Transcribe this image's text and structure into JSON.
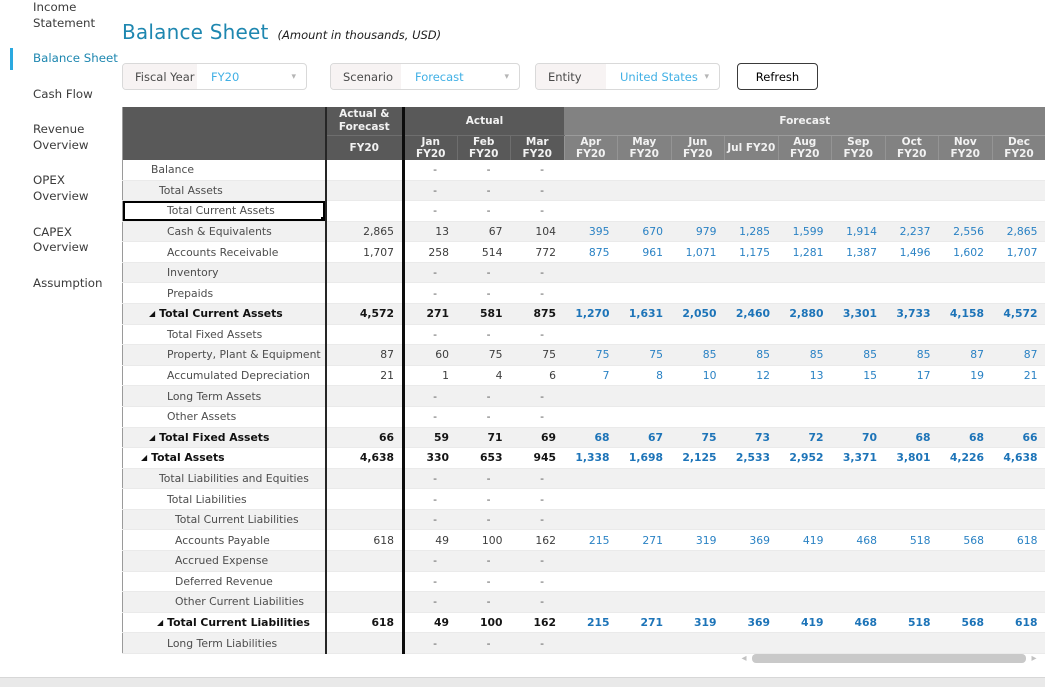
{
  "header": {
    "title": "Balance Sheet",
    "subtitle": "(Amount in thousands, USD)"
  },
  "sidebar": {
    "items": [
      {
        "label": "Income Statement",
        "active": false
      },
      {
        "label": "Balance Sheet",
        "active": true
      },
      {
        "label": "Cash Flow",
        "active": false
      },
      {
        "label": "Revenue Overview",
        "active": false
      },
      {
        "label": "OPEX Overview",
        "active": false
      },
      {
        "label": "CAPEX Overview",
        "active": false
      },
      {
        "label": "Assumption",
        "active": false
      }
    ]
  },
  "filters": [
    {
      "label": "Fiscal Year",
      "value": "FY20"
    },
    {
      "label": "Scenario",
      "value": "Forecast"
    },
    {
      "label": "Entity",
      "value": "United States"
    }
  ],
  "refresh_label": "Refresh",
  "icons": {
    "dropdown": "▾",
    "collapse": "◢",
    "scroll_left": "◂",
    "scroll_right": "▸"
  },
  "colors": {
    "accent_blue": "#1e87b0",
    "filter_value_blue": "#41b0e5",
    "forecast_text_blue": "#2a82c4",
    "header_dark": "#595959",
    "header_forecast": "#828282",
    "row_alt": "#f1f1f1"
  },
  "table": {
    "groups": {
      "actual_forecast": "Actual & Forecast",
      "actual": "Actual",
      "forecast": "Forecast"
    },
    "fy_label": "FY20",
    "actual_months": [
      "Jan FY20",
      "Feb FY20",
      "Mar FY20"
    ],
    "forecast_months": [
      "Apr FY20",
      "May FY20",
      "Jun FY20",
      "Jul FY20",
      "Aug FY20",
      "Sep FY20",
      "Oct FY20",
      "Nov FY20",
      "Dec FY20"
    ],
    "rows": [
      {
        "label": "Balance",
        "indent": 1,
        "bold": false,
        "selected": false,
        "fy20": "",
        "actual": [
          "-",
          "-",
          "-"
        ],
        "forecast": [
          "",
          "",
          "",
          "",
          "",
          "",
          "",
          "",
          ""
        ]
      },
      {
        "label": "Total Assets",
        "indent": 2,
        "bold": false,
        "selected": false,
        "fy20": "",
        "actual": [
          "-",
          "-",
          "-"
        ],
        "forecast": [
          "",
          "",
          "",
          "",
          "",
          "",
          "",
          "",
          ""
        ]
      },
      {
        "label": "Total Current Assets",
        "indent": 3,
        "bold": false,
        "selected": true,
        "fy20": "",
        "actual": [
          "-",
          "-",
          "-"
        ],
        "forecast": [
          "",
          "",
          "",
          "",
          "",
          "",
          "",
          "",
          ""
        ]
      },
      {
        "label": "Cash & Equivalents",
        "indent": 3,
        "bold": false,
        "selected": false,
        "fy20": "2,865",
        "actual": [
          "13",
          "67",
          "104"
        ],
        "forecast": [
          "395",
          "670",
          "979",
          "1,285",
          "1,599",
          "1,914",
          "2,237",
          "2,556",
          "2,865"
        ]
      },
      {
        "label": "Accounts Receivable",
        "indent": 3,
        "bold": false,
        "selected": false,
        "fy20": "1,707",
        "actual": [
          "258",
          "514",
          "772"
        ],
        "forecast": [
          "875",
          "961",
          "1,071",
          "1,175",
          "1,281",
          "1,387",
          "1,496",
          "1,602",
          "1,707"
        ]
      },
      {
        "label": "Inventory",
        "indent": 3,
        "bold": false,
        "selected": false,
        "fy20": "",
        "actual": [
          "-",
          "-",
          "-"
        ],
        "forecast": [
          "",
          "",
          "",
          "",
          "",
          "",
          "",
          "",
          ""
        ]
      },
      {
        "label": "Prepaids",
        "indent": 3,
        "bold": false,
        "selected": false,
        "fy20": "",
        "actual": [
          "-",
          "-",
          "-"
        ],
        "forecast": [
          "",
          "",
          "",
          "",
          "",
          "",
          "",
          "",
          ""
        ]
      },
      {
        "label": "Total Current Assets",
        "indent": 2,
        "bold": true,
        "selected": false,
        "fy20": "4,572",
        "actual": [
          "271",
          "581",
          "875"
        ],
        "forecast": [
          "1,270",
          "1,631",
          "2,050",
          "2,460",
          "2,880",
          "3,301",
          "3,733",
          "4,158",
          "4,572"
        ]
      },
      {
        "label": "Total Fixed Assets",
        "indent": 3,
        "bold": false,
        "selected": false,
        "fy20": "",
        "actual": [
          "-",
          "-",
          "-"
        ],
        "forecast": [
          "",
          "",
          "",
          "",
          "",
          "",
          "",
          "",
          ""
        ]
      },
      {
        "label": "Property, Plant & Equipment",
        "indent": 3,
        "bold": false,
        "selected": false,
        "fy20": "87",
        "actual": [
          "60",
          "75",
          "75"
        ],
        "forecast": [
          "75",
          "75",
          "85",
          "85",
          "85",
          "85",
          "85",
          "87",
          "87"
        ]
      },
      {
        "label": "Accumulated Depreciation",
        "indent": 3,
        "bold": false,
        "selected": false,
        "fy20": "21",
        "actual": [
          "1",
          "4",
          "6"
        ],
        "forecast": [
          "7",
          "8",
          "10",
          "12",
          "13",
          "15",
          "17",
          "19",
          "21"
        ]
      },
      {
        "label": "Long Term Assets",
        "indent": 3,
        "bold": false,
        "selected": false,
        "fy20": "",
        "actual": [
          "-",
          "-",
          "-"
        ],
        "forecast": [
          "",
          "",
          "",
          "",
          "",
          "",
          "",
          "",
          ""
        ]
      },
      {
        "label": "Other Assets",
        "indent": 3,
        "bold": false,
        "selected": false,
        "fy20": "",
        "actual": [
          "-",
          "-",
          "-"
        ],
        "forecast": [
          "",
          "",
          "",
          "",
          "",
          "",
          "",
          "",
          ""
        ]
      },
      {
        "label": "Total Fixed Assets",
        "indent": 2,
        "bold": true,
        "selected": false,
        "fy20": "66",
        "actual": [
          "59",
          "71",
          "69"
        ],
        "forecast": [
          "68",
          "67",
          "75",
          "73",
          "72",
          "70",
          "68",
          "68",
          "66"
        ]
      },
      {
        "label": "Total Assets",
        "indent": 1,
        "bold": true,
        "selected": false,
        "fy20": "4,638",
        "actual": [
          "330",
          "653",
          "945"
        ],
        "forecast": [
          "1,338",
          "1,698",
          "2,125",
          "2,533",
          "2,952",
          "3,371",
          "3,801",
          "4,226",
          "4,638"
        ]
      },
      {
        "label": "Total Liabilities and Equities",
        "indent": 2,
        "bold": false,
        "selected": false,
        "fy20": "",
        "actual": [
          "-",
          "-",
          "-"
        ],
        "forecast": [
          "",
          "",
          "",
          "",
          "",
          "",
          "",
          "",
          ""
        ]
      },
      {
        "label": "Total Liabilities",
        "indent": 3,
        "bold": false,
        "selected": false,
        "fy20": "",
        "actual": [
          "-",
          "-",
          "-"
        ],
        "forecast": [
          "",
          "",
          "",
          "",
          "",
          "",
          "",
          "",
          ""
        ]
      },
      {
        "label": "Total Current Liabilities",
        "indent": 4,
        "bold": false,
        "selected": false,
        "fy20": "",
        "actual": [
          "-",
          "-",
          "-"
        ],
        "forecast": [
          "",
          "",
          "",
          "",
          "",
          "",
          "",
          "",
          ""
        ]
      },
      {
        "label": "Accounts Payable",
        "indent": 4,
        "bold": false,
        "selected": false,
        "fy20": "618",
        "actual": [
          "49",
          "100",
          "162"
        ],
        "forecast": [
          "215",
          "271",
          "319",
          "369",
          "419",
          "468",
          "518",
          "568",
          "618"
        ]
      },
      {
        "label": "Accrued Expense",
        "indent": 4,
        "bold": false,
        "selected": false,
        "fy20": "",
        "actual": [
          "-",
          "-",
          "-"
        ],
        "forecast": [
          "",
          "",
          "",
          "",
          "",
          "",
          "",
          "",
          ""
        ]
      },
      {
        "label": "Deferred Revenue",
        "indent": 4,
        "bold": false,
        "selected": false,
        "fy20": "",
        "actual": [
          "-",
          "-",
          "-"
        ],
        "forecast": [
          "",
          "",
          "",
          "",
          "",
          "",
          "",
          "",
          ""
        ]
      },
      {
        "label": "Other Current Liabilities",
        "indent": 4,
        "bold": false,
        "selected": false,
        "fy20": "",
        "actual": [
          "-",
          "-",
          "-"
        ],
        "forecast": [
          "",
          "",
          "",
          "",
          "",
          "",
          "",
          "",
          ""
        ]
      },
      {
        "label": "Total Current Liabilities",
        "indent": 3,
        "bold": true,
        "selected": false,
        "fy20": "618",
        "actual": [
          "49",
          "100",
          "162"
        ],
        "forecast": [
          "215",
          "271",
          "319",
          "369",
          "419",
          "468",
          "518",
          "568",
          "618"
        ]
      },
      {
        "label": "Long Term Liabilities",
        "indent": 3,
        "bold": false,
        "selected": false,
        "fy20": "",
        "actual": [
          "-",
          "-",
          "-"
        ],
        "forecast": [
          "",
          "",
          "",
          "",
          "",
          "",
          "",
          "",
          ""
        ]
      }
    ]
  }
}
